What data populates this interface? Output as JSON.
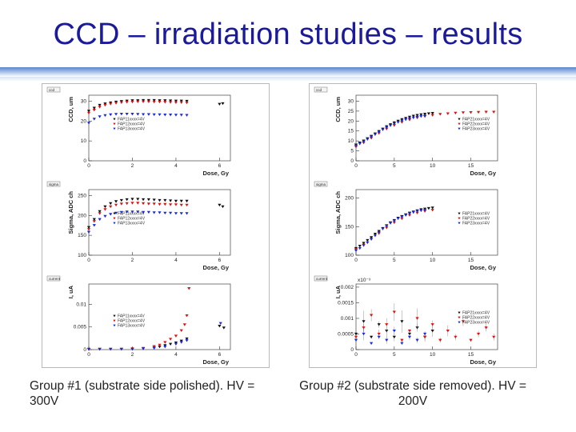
{
  "title": "CCD – irradiation studies – results",
  "captions": {
    "left": "Group #1 (substrate side polished). HV = 300V",
    "right": "Group #2 (substrate side removed). HV = 200V"
  },
  "colors": {
    "title": "#1a1a9a",
    "series1": "#111111",
    "series2": "#dd1111",
    "series3": "#1a2ad8"
  },
  "chart_data": [
    {
      "id": "g1-ccd",
      "type": "scatter",
      "tag": "ccd",
      "xlabel": "Dose, Gy",
      "ylabel": "CCD, um",
      "xlim": [
        0,
        6.5
      ],
      "ylim": [
        0,
        33
      ],
      "xticks": [
        0,
        2,
        4,
        6
      ],
      "yticks": [
        0,
        10,
        20,
        30
      ],
      "legend": [
        "FAP11xxxx=4V",
        "FAP12xxxx=4V",
        "FAP13xxxx=4V"
      ],
      "series": [
        {
          "name": "FAP11",
          "color": "#111111",
          "x": [
            0,
            0.25,
            0.5,
            0.75,
            1,
            1.25,
            1.5,
            1.75,
            2,
            2.25,
            2.5,
            2.75,
            3,
            3.25,
            3.5,
            3.75,
            4,
            4.25,
            4.5,
            6,
            6.15
          ],
          "y": [
            25,
            26.5,
            28,
            28.7,
            29.2,
            29.6,
            29.9,
            30.1,
            30.3,
            30.3,
            30.4,
            30.4,
            30.4,
            30.3,
            30.3,
            30.2,
            30.1,
            30.1,
            30,
            28.5,
            28.8
          ]
        },
        {
          "name": "FAP12",
          "color": "#dd1111",
          "x": [
            0,
            0.25,
            0.5,
            0.75,
            1,
            1.25,
            1.5,
            1.75,
            2,
            2.25,
            2.5,
            2.75,
            3,
            3.25,
            3.5,
            3.75,
            4,
            4.25,
            4.5
          ],
          "y": [
            24,
            25.5,
            27,
            28,
            28.6,
            29,
            29.3,
            29.5,
            29.6,
            29.7,
            29.7,
            29.7,
            29.6,
            29.6,
            29.5,
            29.4,
            29.3,
            29.3,
            29.2
          ]
        },
        {
          "name": "FAP13",
          "color": "#1a2ad8",
          "x": [
            0,
            0.25,
            0.5,
            0.75,
            1,
            1.25,
            1.5,
            1.75,
            2,
            2.25,
            2.5,
            2.75,
            3,
            3.25,
            3.5,
            3.75,
            4,
            4.25,
            4.5
          ],
          "y": [
            19,
            21,
            22.2,
            22.8,
            23.2,
            23.4,
            23.5,
            23.5,
            23.5,
            23.4,
            23.3,
            23.3,
            23.2,
            23.2,
            23.1,
            23.1,
            23,
            23,
            22.9
          ]
        }
      ]
    },
    {
      "id": "g1-sigma",
      "type": "scatter",
      "tag": "sigma",
      "xlabel": "Dose, Gy",
      "ylabel": "Sigma, ADC ch",
      "xlim": [
        0,
        6.5
      ],
      "ylim": [
        100,
        265
      ],
      "xticks": [
        0,
        2,
        4,
        6
      ],
      "yticks": [
        100,
        150,
        200,
        250
      ],
      "legend": [
        "FAP11xxxx=4V",
        "FAP12xxxx=4V",
        "FAP13xxxx=4V"
      ],
      "series": [
        {
          "name": "FAP11",
          "color": "#111111",
          "x": [
            0,
            0.25,
            0.5,
            0.75,
            1,
            1.25,
            1.5,
            1.75,
            2,
            2.25,
            2.5,
            2.75,
            3,
            3.25,
            3.5,
            3.75,
            4,
            4.25,
            4.5,
            6,
            6.15
          ],
          "y": [
            170,
            190,
            210,
            222,
            230,
            235,
            238,
            240,
            241,
            241,
            240,
            240,
            239,
            238,
            238,
            237,
            236,
            236,
            236,
            226,
            222
          ]
        },
        {
          "name": "FAP12",
          "color": "#dd1111",
          "x": [
            0,
            0.25,
            0.5,
            0.75,
            1,
            1.25,
            1.5,
            1.75,
            2,
            2.25,
            2.5,
            2.75,
            3,
            3.25,
            3.5,
            3.75,
            4,
            4.25,
            4.5
          ],
          "y": [
            165,
            185,
            205,
            215,
            222,
            226,
            229,
            230,
            231,
            231,
            230,
            229,
            229,
            228,
            228,
            227,
            227,
            226,
            226
          ]
        },
        {
          "name": "FAP13",
          "color": "#1a2ad8",
          "x": [
            0,
            0.25,
            0.5,
            0.75,
            1,
            1.25,
            1.5,
            1.75,
            2,
            2.25,
            2.5,
            2.75,
            3,
            3.25,
            3.5,
            3.75,
            4,
            4.25,
            4.5
          ],
          "y": [
            158,
            175,
            190,
            198,
            203,
            206,
            208,
            209,
            209,
            209,
            208,
            208,
            207,
            207,
            206,
            206,
            205,
            205,
            205
          ]
        }
      ]
    },
    {
      "id": "g1-current",
      "type": "scatter",
      "tag": "current",
      "xlabel": "Dose, Gy",
      "ylabel": "I, uA",
      "xlim": [
        0,
        6.5
      ],
      "ylim": [
        0,
        0.0145
      ],
      "xticks": [
        0,
        2,
        4,
        6
      ],
      "yticks": [
        0,
        0.005,
        0.01
      ],
      "ytick_labels": [
        "0",
        "0.005",
        "0.01"
      ],
      "legend": [
        "FAP11xxxx=4V",
        "FAP12xxxx=4V",
        "FAP13xxxx=4V"
      ],
      "series": [
        {
          "name": "FAP11",
          "color": "#111111",
          "x": [
            0,
            0.5,
            1,
            1.5,
            2,
            2.5,
            3,
            3.25,
            3.5,
            3.75,
            4,
            4.25,
            4.5,
            6,
            6.2
          ],
          "y": [
            0.0001,
            0.0001,
            0.0001,
            0.0001,
            0.0001,
            0.0002,
            0.0004,
            0.0006,
            0.0009,
            0.0012,
            0.0015,
            0.0019,
            0.0024,
            0.0052,
            0.0048
          ]
        },
        {
          "name": "FAP12",
          "color": "#dd1111",
          "x": [
            0,
            0.5,
            1,
            1.5,
            2,
            2.5,
            3,
            3.25,
            3.5,
            3.75,
            4,
            4.25,
            4.4,
            4.5,
            4.6
          ],
          "y": [
            0,
            0.0001,
            0.0001,
            0.0001,
            0.0002,
            0.0003,
            0.0007,
            0.001,
            0.0016,
            0.0023,
            0.003,
            0.0042,
            0.0055,
            0.0075,
            0.0135
          ]
        },
        {
          "name": "FAP13",
          "color": "#1a2ad8",
          "x": [
            0,
            0.5,
            1,
            1.5,
            2,
            2.5,
            3,
            3.5,
            4,
            4.25,
            4.5,
            6.05
          ],
          "y": [
            0.0001,
            0.0001,
            0.0001,
            0.0001,
            0.0001,
            0.0002,
            0.0003,
            0.0006,
            0.0012,
            0.0016,
            0.002,
            0.0058
          ]
        }
      ]
    },
    {
      "id": "g2-ccd",
      "type": "scatter",
      "tag": "ccd",
      "xlabel": "Dose, Gy",
      "ylabel": "CCD, um",
      "xlim": [
        0,
        18.5
      ],
      "ylim": [
        0,
        33
      ],
      "xticks": [
        0,
        5,
        10,
        15
      ],
      "yticks": [
        0,
        5,
        10,
        15,
        20,
        25,
        30
      ],
      "legend": [
        "FAP21xxxx=4V",
        "FAP22xxxx=4V",
        "FAP23xxxx=4V"
      ],
      "series": [
        {
          "name": "FAP21",
          "color": "#111111",
          "x": [
            0,
            0.5,
            1,
            1.5,
            2,
            2.5,
            3,
            3.5,
            4,
            4.5,
            5,
            5.5,
            6,
            6.5,
            7,
            7.5,
            8,
            8.5,
            9,
            9.5,
            10
          ],
          "y": [
            8,
            9,
            10,
            11.2,
            12.4,
            13.6,
            14.8,
            16,
            17.2,
            18.2,
            19.2,
            20,
            20.8,
            21.4,
            22,
            22.5,
            22.9,
            23.2,
            23.5,
            23.7,
            23.9
          ]
        },
        {
          "name": "FAP22",
          "color": "#dd1111",
          "x": [
            0,
            1,
            2,
            3,
            4,
            5,
            6,
            7,
            8,
            9,
            10,
            11,
            12,
            13,
            14,
            15,
            16,
            17,
            18
          ],
          "y": [
            7,
            9,
            11.4,
            13.8,
            16,
            17.8,
            19.4,
            20.6,
            21.6,
            22.3,
            22.9,
            23.4,
            23.7,
            24,
            24.2,
            24.3,
            24.4,
            24.5,
            24.5
          ]
        },
        {
          "name": "FAP23",
          "color": "#1a2ad8",
          "x": [
            0,
            0.5,
            1,
            1.5,
            2,
            2.5,
            3,
            3.5,
            4,
            4.5,
            5,
            5.5,
            6,
            6.5,
            7,
            7.5,
            8,
            8.5,
            9
          ],
          "y": [
            7.5,
            8.5,
            9.6,
            10.8,
            12,
            13.2,
            14.4,
            15.6,
            16.7,
            17.7,
            18.6,
            19.4,
            20.1,
            20.7,
            21.2,
            21.6,
            22,
            22.3,
            22.6
          ]
        }
      ]
    },
    {
      "id": "g2-sigma",
      "type": "scatter",
      "tag": "sigma",
      "xlabel": "Dose, Gy",
      "ylabel": "Sigma, ADC ch",
      "xlim": [
        0,
        18.5
      ],
      "ylim": [
        100,
        215
      ],
      "xticks": [
        0,
        5,
        10,
        15
      ],
      "yticks": [
        100,
        150,
        200
      ],
      "legend": [
        "FAP21xxxx=4V",
        "FAP22xxxx=4V",
        "FAP23xxxx=4V"
      ],
      "series": [
        {
          "name": "FAP21",
          "color": "#111111",
          "x": [
            0,
            0.5,
            1,
            1.5,
            2,
            2.5,
            3,
            3.5,
            4,
            4.5,
            5,
            5.5,
            6,
            6.5,
            7,
            7.5,
            8,
            8.5,
            9,
            9.5,
            10
          ],
          "y": [
            112,
            116,
            121,
            126,
            131,
            137,
            142,
            147,
            152,
            157,
            161,
            165,
            168,
            171,
            174,
            176,
            178,
            180,
            181,
            182,
            183
          ]
        },
        {
          "name": "FAP22",
          "color": "#dd1111",
          "x": [
            0,
            1,
            2,
            3,
            4,
            5,
            6,
            7,
            8,
            9,
            10
          ],
          "y": [
            110,
            118,
            128,
            138,
            148,
            157,
            164,
            170,
            174,
            177,
            179
          ]
        },
        {
          "name": "FAP23",
          "color": "#1a2ad8",
          "x": [
            0,
            0.5,
            1,
            1.5,
            2,
            2.5,
            3,
            3.5,
            4,
            4.5,
            5,
            5.5,
            6,
            6.5,
            7,
            7.5,
            8,
            8.5,
            9
          ],
          "y": [
            108,
            112,
            117,
            122,
            128,
            134,
            140,
            146,
            151,
            156,
            160,
            164,
            167,
            170,
            173,
            175,
            177,
            178,
            179
          ]
        }
      ]
    },
    {
      "id": "g2-current",
      "type": "scatter",
      "tag": "current",
      "xlabel": "Dose, Gy",
      "ylabel": "I, uA",
      "xlim": [
        0,
        18.5
      ],
      "ylim": [
        0,
        0.0021
      ],
      "xticks": [
        0,
        5,
        10,
        15
      ],
      "yticks": [
        0,
        0.0005,
        0.001,
        0.0015,
        0.002
      ],
      "ytick_labels": [
        "0",
        "0.0005",
        "0.001",
        "0.0015",
        "0.002"
      ],
      "exponent_label": "x10⁻³",
      "legend": [
        "FAP21xxxx=4V",
        "FAP22xxxx=4V",
        "FAP23xxxx=4V"
      ],
      "series": [
        {
          "name": "FAP21",
          "color": "#111111",
          "x": [
            0,
            1,
            2,
            3,
            4,
            5,
            6,
            7,
            8,
            9,
            10
          ],
          "y": [
            0.0005,
            0.0009,
            0.0004,
            0.0008,
            0.0006,
            0.0004,
            0.0009,
            0.0005,
            0.0007,
            0.0004,
            0.0006
          ]
        },
        {
          "name": "FAP22",
          "color": "#dd1111",
          "x": [
            0,
            1,
            2,
            3,
            4,
            5,
            6,
            7,
            8,
            9,
            10,
            11,
            12,
            13,
            14,
            15,
            16,
            17,
            18
          ],
          "y": [
            0.0004,
            0.0007,
            0.0011,
            0.0005,
            0.0008,
            0.0012,
            0.0003,
            0.0006,
            0.001,
            0.0004,
            0.0008,
            0.0003,
            0.0006,
            0.0004,
            0.0009,
            0.0003,
            0.0005,
            0.0007,
            0.0004
          ]
        },
        {
          "name": "FAP23",
          "color": "#1a2ad8",
          "x": [
            0,
            1,
            2,
            3,
            4,
            5,
            6,
            7,
            8,
            9
          ],
          "y": [
            0.0003,
            0.0005,
            0.0002,
            0.0004,
            0.0003,
            0.0006,
            0.0002,
            0.0004,
            0.0003,
            0.0005
          ]
        }
      ]
    }
  ]
}
